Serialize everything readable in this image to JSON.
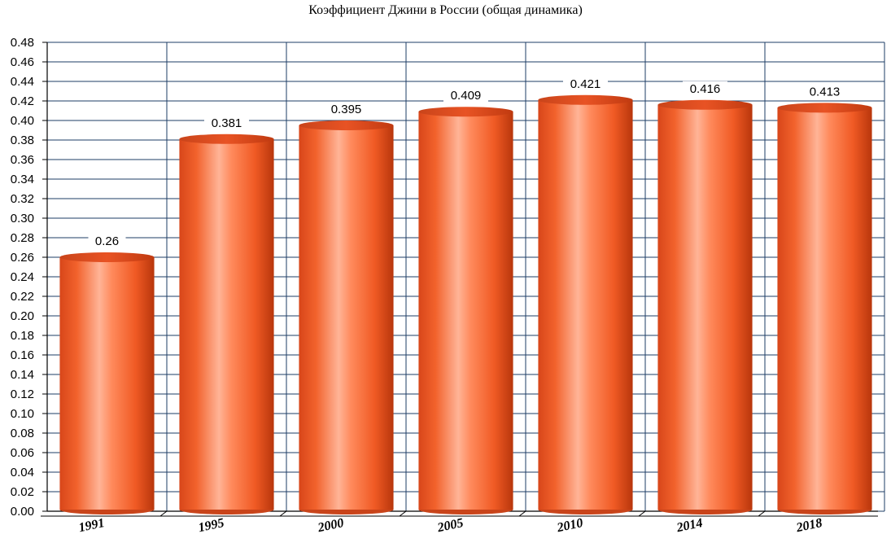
{
  "chart_data": {
    "type": "bar",
    "title": "Коэффициент Джини в России (общая динамика)",
    "categories": [
      "1991",
      "1995",
      "2000",
      "2005",
      "2010",
      "2014",
      "2018"
    ],
    "values": [
      0.26,
      0.381,
      0.395,
      0.409,
      0.421,
      0.416,
      0.413
    ],
    "data_labels": [
      "0.26",
      "0.381",
      "0.395",
      "0.409",
      "0.421",
      "0.416",
      "0.413"
    ],
    "ylim": [
      0,
      0.48
    ],
    "yticks": [
      "0.00",
      "0.02",
      "0.04",
      "0.06",
      "0.08",
      "0.10",
      "0.12",
      "0.14",
      "0.16",
      "0.18",
      "0.20",
      "0.22",
      "0.24",
      "0.26",
      "0.28",
      "0.30",
      "0.32",
      "0.34",
      "0.36",
      "0.38",
      "0.40",
      "0.42",
      "0.44",
      "0.46",
      "0.48"
    ],
    "grid": true,
    "colors": {
      "bar": "#f05a24",
      "bar_highlight": "#ffa98a",
      "bar_dark": "#c03a10",
      "grid": "#1e3c64"
    }
  }
}
